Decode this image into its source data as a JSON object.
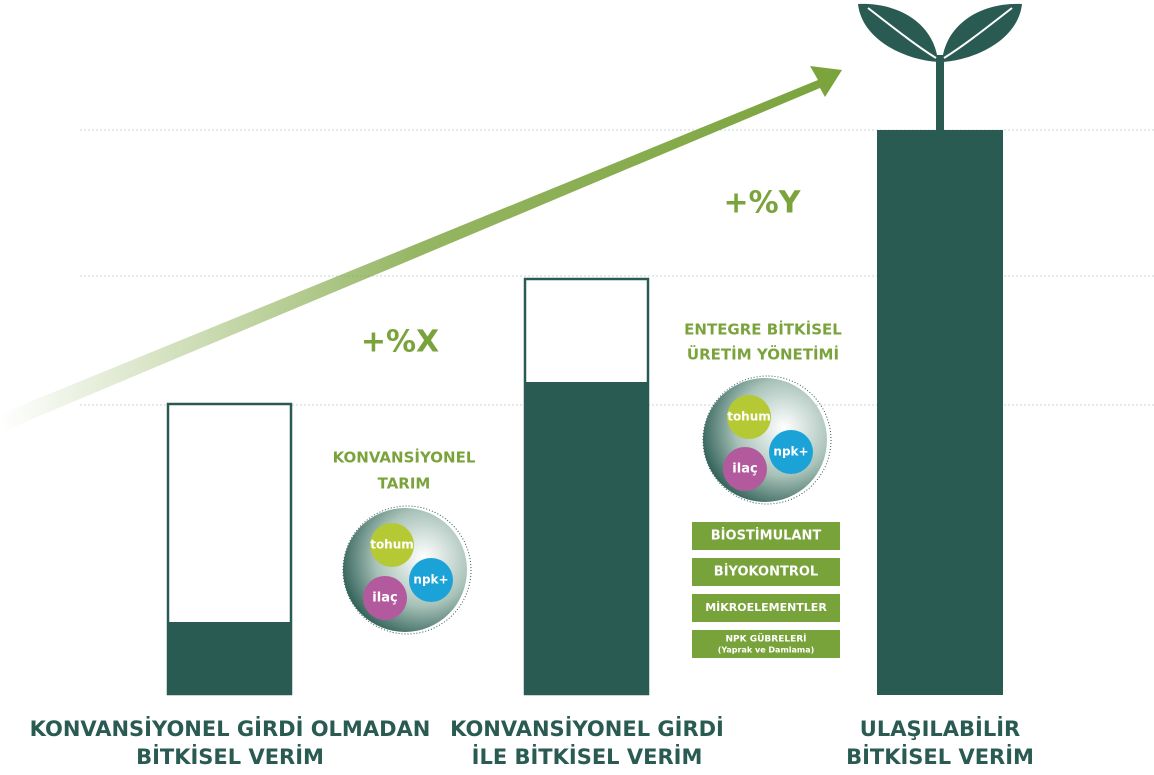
{
  "gains": {
    "x": "+%X",
    "y": "+%Y"
  },
  "practices": [
    {
      "title": [
        "KONVANSİYONEL",
        "TARIM"
      ],
      "inputs": {
        "seed": "tohum",
        "fertilizer": "npk+",
        "pesticide": "ilaç"
      }
    },
    {
      "title": [
        "ENTEGRE BİTKİSEL",
        "ÜRETİM YÖNETİMİ"
      ],
      "inputs": {
        "seed": "tohum",
        "fertilizer": "npk+",
        "pesticide": "ilaç"
      },
      "products": [
        "BİOSTİMULANT",
        "BİYOKONTROL",
        "MİKROELEMENTLER",
        [
          "NPK GÜBRELERİ",
          "(Yaprak ve Damlama)"
        ]
      ]
    }
  ],
  "yields": [
    [
      "KONVANSİYONEL GİRDİ OLMADAN",
      "BİTKİSEL VERİM"
    ],
    [
      "KONVANSİYONEL GİRDİ",
      "İLE BİTKİSEL VERİM"
    ],
    [
      "ULAŞILABİLİR",
      "BİTKİSEL VERİM"
    ]
  ]
}
